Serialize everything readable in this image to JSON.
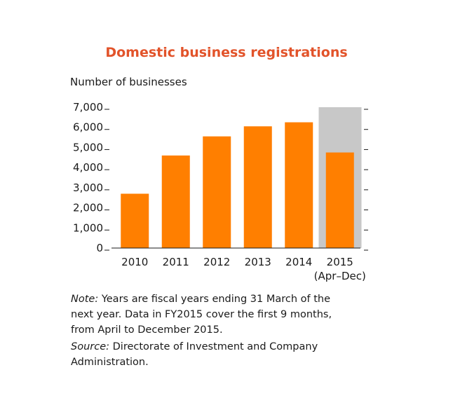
{
  "title": "Domestic business registrations",
  "note_label": "Note:",
  "note_text": "Years are fiscal years ending 31 March of the next year. Data in FY2015 cover the first 9 months, from April to December 2015.",
  "source_label": "Source:",
  "source_text": "Directorate of Investment and Company Administration.",
  "colors": {
    "title": "#e2532a",
    "bar": "#ff7f00",
    "highlight": "#c8c8c8"
  },
  "chart_data": {
    "type": "bar",
    "title": "Domestic business registrations",
    "ylabel": "Number of businesses",
    "xlabel": "",
    "categories": [
      "2010",
      "2011",
      "2012",
      "2013",
      "2014",
      "2015"
    ],
    "category_sublabels": [
      "",
      "",
      "",
      "",
      "",
      "(Apr–Dec)"
    ],
    "values": [
      2700,
      4600,
      5550,
      6050,
      6250,
      4750
    ],
    "ylim": [
      0,
      7000
    ],
    "yticks": [
      "0",
      "1,000",
      "2,000",
      "3,000",
      "4,000",
      "5,000",
      "6,000",
      "7,000"
    ],
    "highlight_category": "2015",
    "grid": false
  }
}
